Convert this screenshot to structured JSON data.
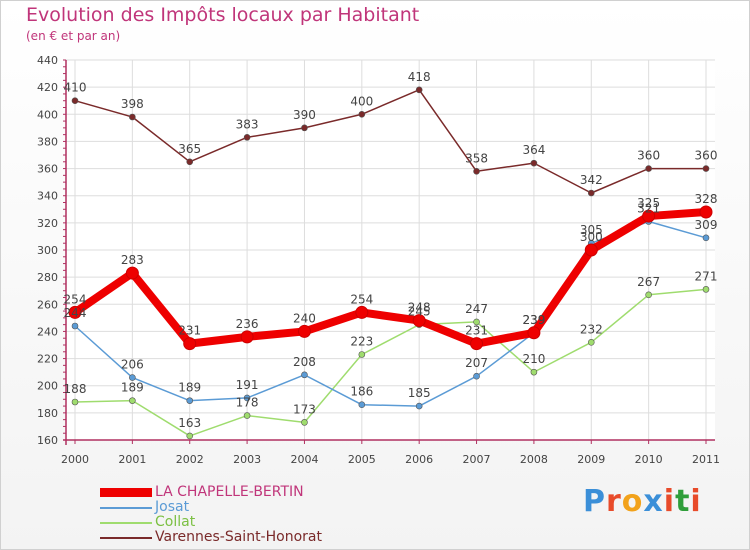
{
  "header": {
    "title": "Evolution des Impôts locaux par Habitant",
    "subtitle": "(en € et par an)"
  },
  "logo": {
    "text": "Proxiti",
    "colors": [
      "#3b8fd8",
      "#e84b2a",
      "#f2a21b",
      "#3b8fd8",
      "#e84b2a",
      "#2f9e3a",
      "#e84b2a"
    ]
  },
  "colors": {
    "title": "#c0357a",
    "axis": "#b03060",
    "grid": "#dddddd"
  },
  "chart_data": {
    "type": "line",
    "title": "Evolution des Impôts locaux par Habitant",
    "subtitle": "(en € et par an)",
    "x": [
      "2000",
      "2001",
      "2002",
      "2003",
      "2004",
      "2005",
      "2006",
      "2007",
      "2008",
      "2009",
      "2010",
      "2011"
    ],
    "yticks": [
      160,
      180,
      200,
      220,
      240,
      260,
      280,
      300,
      320,
      340,
      360,
      380,
      400,
      420,
      440
    ],
    "ylim": [
      160,
      440
    ],
    "grid": true,
    "legend": "bottom-left",
    "series": [
      {
        "name": "LA CHAPELLE-BERTIN",
        "color": "#ee0000",
        "width": 8,
        "values": [
          254,
          283,
          231,
          236,
          240,
          254,
          248,
          231,
          239,
          300,
          325,
          328
        ],
        "labels": [
          "254",
          "283",
          "231",
          "236",
          "240",
          "254",
          "248",
          "231",
          "239",
          "300",
          "325",
          "328"
        ]
      },
      {
        "name": "Josat",
        "color": "#5b9bd5",
        "width": 1.5,
        "values": [
          244,
          206,
          189,
          191,
          208,
          186,
          185,
          207,
          239,
          305,
          321,
          309
        ],
        "labels": [
          "244",
          "206",
          "189",
          "191",
          "208",
          "186",
          "185",
          "207",
          "239",
          "305",
          "321",
          "309"
        ]
      },
      {
        "name": "Collat",
        "color": "#9fdc6e",
        "width": 1.5,
        "values": [
          188,
          189,
          163,
          178,
          173,
          223,
          245,
          247,
          210,
          232,
          267,
          271
        ],
        "labels": [
          "188",
          "189",
          "163",
          "178",
          "173",
          "223",
          "245",
          "247",
          "210",
          "232",
          "267",
          "271"
        ]
      },
      {
        "name": "Varennes-Saint-Honorat",
        "color": "#7a2a2a",
        "width": 1.5,
        "values": [
          410,
          398,
          365,
          383,
          390,
          400,
          418,
          358,
          364,
          342,
          360,
          360
        ],
        "labels": [
          "410",
          "398",
          "365",
          "383",
          "390",
          "400",
          "418",
          "358",
          "364",
          "342",
          "360",
          "360"
        ]
      }
    ]
  }
}
